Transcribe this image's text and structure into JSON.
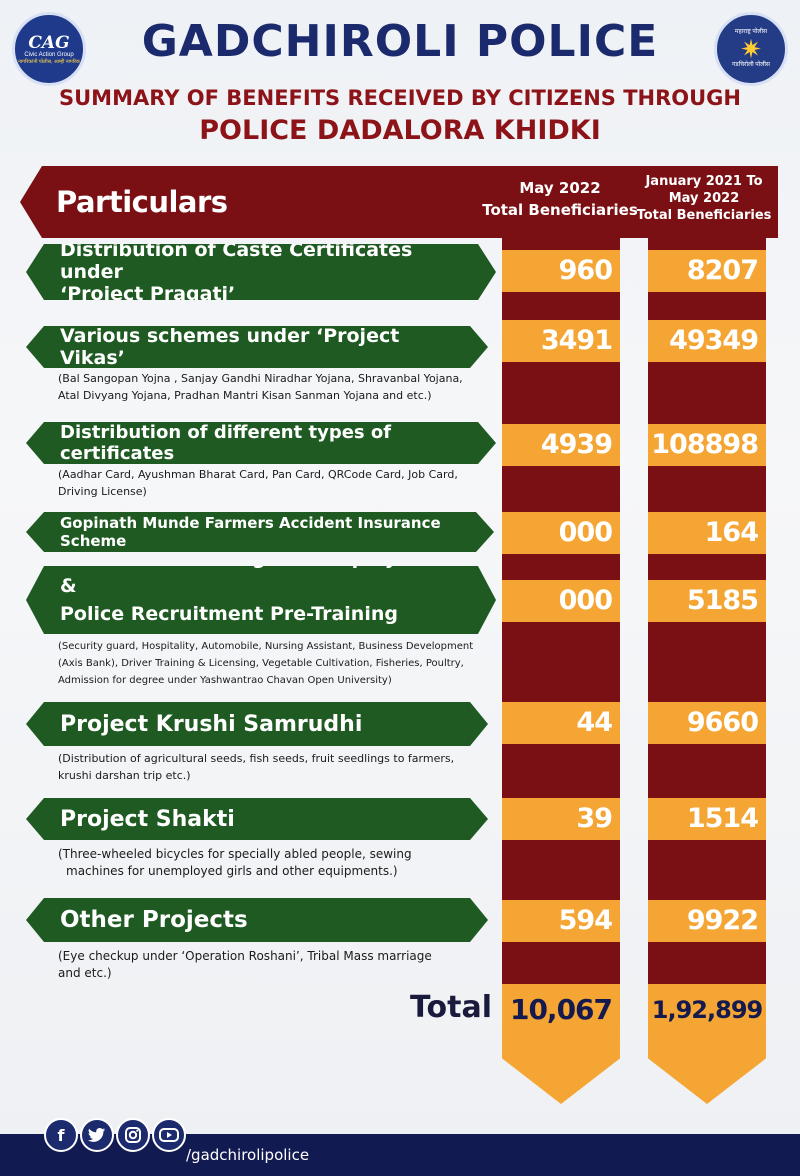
{
  "header": {
    "title": "GADCHIROLI POLICE",
    "subtitle_line1": "SUMMARY OF BENEFITS RECEIVED BY CITIZENS THROUGH",
    "subtitle_line2": "POLICE DADALORA KHIDKI",
    "left_logo": {
      "mark": "CAG",
      "org": "Civic Action Group",
      "tagline": "नागरिकांनी पोलीस, आम्ही नागरिक"
    },
    "right_logo": {
      "top_text": "महाराष्ट्र पोलीस",
      "bottom_text": "गडचिरोली पोलीस",
      "icon": "police-star-icon"
    }
  },
  "table": {
    "label": "Particulars",
    "col1_header": [
      "May 2022",
      "Total Beneficiaries"
    ],
    "col2_header": [
      "January 2021 To",
      "May 2022",
      "Total Beneficiaries"
    ],
    "rows": [
      {
        "title": [
          "Distribution of Caste Certificates under",
          "‘Project Pragati’"
        ],
        "desc": [],
        "may_2022": "960",
        "jan2021_may2022": "8207"
      },
      {
        "title": [
          "Various schemes under ‘Project Vikas’"
        ],
        "desc": [
          "(Bal Sangopan Yojna , Sanjay Gandhi Niradhar Yojana, Shravanbal Yojana,",
          "Atal Divyang Yojana, Pradhan Mantri Kisan Sanman Yojana and etc.)"
        ],
        "may_2022": "3491",
        "jan2021_may2022": "49349"
      },
      {
        "title": [
          "Distribution of different types of certificates"
        ],
        "desc": [
          "(Aadhar Card, Ayushman Bharat Card, Pan Card, QRCode Card, Job Card,",
          "Driving License)"
        ],
        "may_2022": "4939",
        "jan2021_may2022": "108898"
      },
      {
        "title": [
          "Gopinath Munde Farmers Accident Insurance Scheme"
        ],
        "desc": [],
        "may_2022": "000",
        "jan2021_may2022": "164"
      },
      {
        "title": [
          "Vocational Training and Employment &",
          "Police Recruitment Pre-Training Session"
        ],
        "desc": [
          "(Security guard, Hospitality, Automobile, Nursing Assistant, Business Development",
          "(Axis Bank), Driver Training & Licensing, Vegetable Cultivation, Fisheries, Poultry,",
          "Admission for degree under Yashwantrao Chavan Open University)"
        ],
        "may_2022": "000",
        "jan2021_may2022": "5185"
      },
      {
        "title": [
          "Project Krushi Samrudhi"
        ],
        "desc": [
          "(Distribution of agricultural seeds, fish seeds, fruit seedlings to farmers,",
          "krushi darshan trip etc.)"
        ],
        "may_2022": "44",
        "jan2021_may2022": "9660"
      },
      {
        "title": [
          "Project Shakti"
        ],
        "desc": [
          "(Three-wheeled bicycles for specially abled people, sewing",
          "machines for unemployed girls and other equipments.)"
        ],
        "may_2022": "39",
        "jan2021_may2022": "1514"
      },
      {
        "title": [
          "Other Projects"
        ],
        "desc": [
          "(Eye checkup under ‘Operation Roshani’, Tribal Mass marriage",
          "and etc.)"
        ],
        "may_2022": "594",
        "jan2021_may2022": "9922"
      }
    ],
    "total_label": "Total",
    "total_may_2022": "10,067",
    "total_jan2021_may2022": "1,92,899"
  },
  "footer": {
    "social_icons": [
      "facebook-icon",
      "twitter-icon",
      "instagram-icon",
      "youtube-icon"
    ],
    "handle": "/gadchirolipolice"
  },
  "colors": {
    "maroon": "#7a1014",
    "green": "#1e5a22",
    "orange": "#f4a534",
    "navy": "#1a2a6c"
  }
}
